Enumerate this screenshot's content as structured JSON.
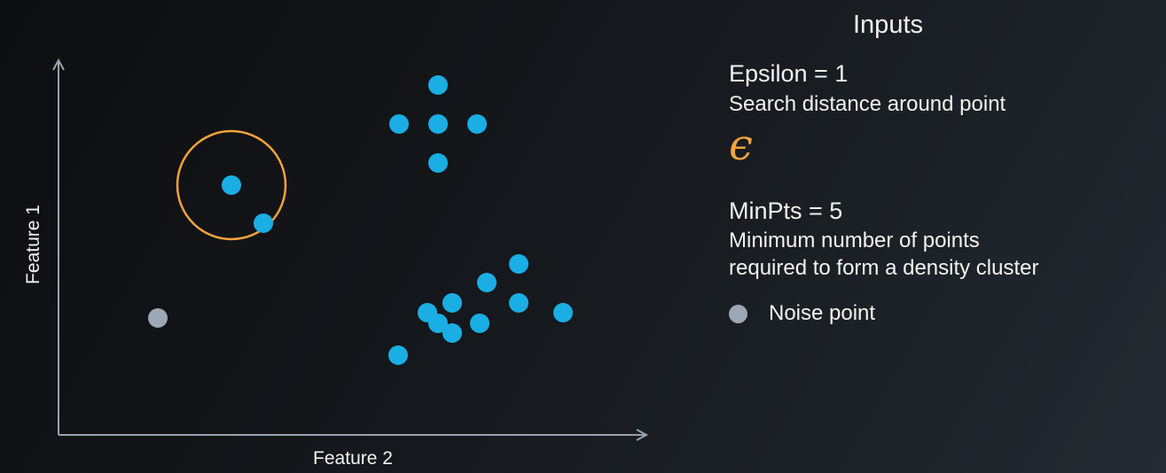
{
  "diagram": {
    "x_axis_label": "Feature 2",
    "y_axis_label": "Feature 1",
    "colors": {
      "point": "#1aaee4",
      "noise_point": "#9ba7b4",
      "epsilon_circle": "#f5a33b",
      "axis": "#9aa3ad"
    }
  },
  "panel": {
    "title": "Inputs",
    "epsilon": {
      "heading": "Epsilon = 1",
      "description": "Search distance around point",
      "symbol": "ϵ"
    },
    "minpts": {
      "heading": "MinPts = 5",
      "description_line1": "Minimum number of points",
      "description_line2": "required to form a density cluster"
    },
    "legend": {
      "noise_label": "Noise point"
    }
  }
}
